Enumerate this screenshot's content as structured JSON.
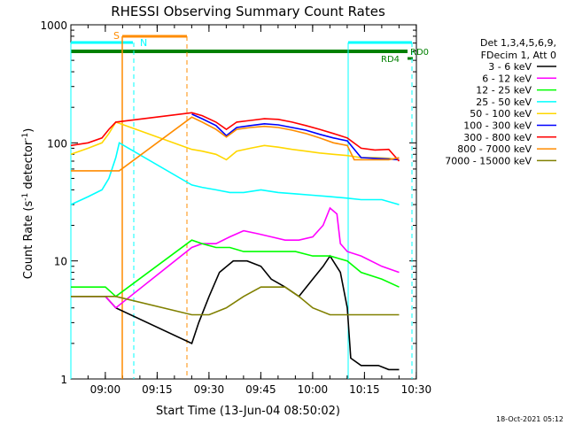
{
  "chart_data": {
    "type": "line",
    "title": "RHESSI Observing Summary Count Rates",
    "xlabel": "Start Time (13-Jun-04 08:50:02)",
    "ylabel_main": "Count Rate (s",
    "ylabel_sup1": "-1",
    "ylabel_mid": " detector",
    "ylabel_sup2": "-1",
    "ylabel_end": ")",
    "y_scale": "log",
    "ylim": [
      1,
      1000
    ],
    "xlim_minutes": [
      0,
      100
    ],
    "y_ticks": [
      {
        "value": 1,
        "label": "1"
      },
      {
        "value": 10,
        "label": "10"
      },
      {
        "value": 100,
        "label": "100"
      },
      {
        "value": 1000,
        "label": "1000"
      }
    ],
    "x_ticks": [
      {
        "minute": 9.97,
        "label": "09:00"
      },
      {
        "minute": 24.97,
        "label": "09:15"
      },
      {
        "minute": 39.97,
        "label": "09:30"
      },
      {
        "minute": 54.97,
        "label": "09:45"
      },
      {
        "minute": 69.97,
        "label": "10:00"
      },
      {
        "minute": 84.97,
        "label": "10:15"
      },
      {
        "minute": 99.97,
        "label": "10:30"
      }
    ],
    "legend_header": [
      "Det 1,3,4,5,6,9,",
      "FDecim 1, Att 0"
    ],
    "series": [
      {
        "name": "3 - 6 keV",
        "color": "#000000",
        "values": [
          [
            0,
            5
          ],
          [
            10,
            5
          ],
          [
            13,
            4
          ],
          [
            35,
            2
          ],
          [
            37,
            3
          ],
          [
            40,
            5
          ],
          [
            43,
            8
          ],
          [
            47,
            10
          ],
          [
            51,
            10
          ],
          [
            55,
            9
          ],
          [
            58,
            7
          ],
          [
            62,
            6
          ],
          [
            66,
            5
          ],
          [
            70,
            7
          ],
          [
            73,
            9
          ],
          [
            75,
            11
          ],
          [
            78,
            8
          ],
          [
            80,
            4
          ],
          [
            81,
            1.5
          ],
          [
            84,
            1.3
          ],
          [
            89,
            1.3
          ],
          [
            92,
            1.2
          ],
          [
            95,
            1.2
          ]
        ]
      },
      {
        "name": "6 - 12 keV",
        "color": "#ff00ff",
        "values": [
          [
            0,
            5
          ],
          [
            10,
            5
          ],
          [
            13,
            4
          ],
          [
            35,
            13
          ],
          [
            38,
            14
          ],
          [
            42,
            14
          ],
          [
            46,
            16
          ],
          [
            50,
            18
          ],
          [
            54,
            17
          ],
          [
            58,
            16
          ],
          [
            62,
            15
          ],
          [
            66,
            15
          ],
          [
            70,
            16
          ],
          [
            73,
            20
          ],
          [
            75,
            28
          ],
          [
            77,
            25
          ],
          [
            78,
            14
          ],
          [
            80,
            12
          ],
          [
            84,
            11
          ],
          [
            90,
            9
          ],
          [
            95,
            8
          ]
        ]
      },
      {
        "name": "12 - 25 keV",
        "color": "#00ff00",
        "values": [
          [
            0,
            6
          ],
          [
            10,
            6
          ],
          [
            13,
            5
          ],
          [
            35,
            15
          ],
          [
            38,
            14
          ],
          [
            42,
            13
          ],
          [
            46,
            13
          ],
          [
            50,
            12
          ],
          [
            55,
            12
          ],
          [
            60,
            12
          ],
          [
            65,
            12
          ],
          [
            70,
            11
          ],
          [
            75,
            11
          ],
          [
            80,
            10
          ],
          [
            84,
            8
          ],
          [
            90,
            7
          ],
          [
            95,
            6
          ]
        ]
      },
      {
        "name": "25 - 50 keV",
        "color": "#00ffff",
        "values": [
          [
            0,
            30
          ],
          [
            5,
            35
          ],
          [
            9,
            40
          ],
          [
            11,
            50
          ],
          [
            13,
            75
          ],
          [
            14,
            100
          ],
          [
            35,
            44
          ],
          [
            38,
            42
          ],
          [
            42,
            40
          ],
          [
            46,
            38
          ],
          [
            50,
            38
          ],
          [
            55,
            40
          ],
          [
            60,
            38
          ],
          [
            65,
            37
          ],
          [
            70,
            36
          ],
          [
            75,
            35
          ],
          [
            80,
            34
          ],
          [
            84,
            33
          ],
          [
            90,
            33
          ],
          [
            95,
            30
          ]
        ]
      },
      {
        "name": "50 - 100 keV",
        "color": "#ffd700",
        "values": [
          [
            0,
            80
          ],
          [
            5,
            90
          ],
          [
            9,
            100
          ],
          [
            11,
            120
          ],
          [
            13,
            150
          ],
          [
            35,
            88
          ],
          [
            38,
            85
          ],
          [
            42,
            80
          ],
          [
            45,
            72
          ],
          [
            48,
            85
          ],
          [
            52,
            90
          ],
          [
            56,
            95
          ],
          [
            60,
            92
          ],
          [
            64,
            88
          ],
          [
            68,
            85
          ],
          [
            72,
            82
          ],
          [
            76,
            80
          ],
          [
            80,
            78
          ],
          [
            84,
            75
          ],
          [
            88,
            75
          ],
          [
            92,
            74
          ],
          [
            95,
            72
          ]
        ]
      },
      {
        "name": "100 - 300 keV",
        "color": "#0000ff",
        "values": [
          [
            35,
            175
          ],
          [
            38,
            160
          ],
          [
            42,
            140
          ],
          [
            45,
            115
          ],
          [
            48,
            135
          ],
          [
            52,
            140
          ],
          [
            56,
            145
          ],
          [
            60,
            142
          ],
          [
            64,
            135
          ],
          [
            68,
            128
          ],
          [
            72,
            118
          ],
          [
            76,
            110
          ],
          [
            80,
            104
          ],
          [
            84,
            75
          ],
          [
            88,
            74
          ],
          [
            92,
            73
          ],
          [
            95,
            72
          ]
        ]
      },
      {
        "name": "300 - 800 keV",
        "color": "#ff0000",
        "values": [
          [
            0,
            95
          ],
          [
            5,
            100
          ],
          [
            9,
            110
          ],
          [
            11,
            130
          ],
          [
            13,
            150
          ],
          [
            35,
            180
          ],
          [
            38,
            170
          ],
          [
            42,
            150
          ],
          [
            45,
            130
          ],
          [
            48,
            150
          ],
          [
            52,
            155
          ],
          [
            56,
            160
          ],
          [
            60,
            158
          ],
          [
            64,
            150
          ],
          [
            68,
            140
          ],
          [
            72,
            130
          ],
          [
            76,
            120
          ],
          [
            80,
            110
          ],
          [
            84,
            90
          ],
          [
            88,
            87
          ],
          [
            92,
            88
          ],
          [
            95,
            70
          ]
        ]
      },
      {
        "name": "800 - 7000 keV",
        "color": "#ff8c00",
        "values": [
          [
            0,
            58
          ],
          [
            14,
            58
          ],
          [
            35,
            165
          ],
          [
            38,
            150
          ],
          [
            42,
            130
          ],
          [
            45,
            112
          ],
          [
            48,
            130
          ],
          [
            52,
            135
          ],
          [
            56,
            138
          ],
          [
            60,
            135
          ],
          [
            64,
            128
          ],
          [
            68,
            120
          ],
          [
            72,
            110
          ],
          [
            76,
            100
          ],
          [
            80,
            95
          ],
          [
            82,
            72
          ],
          [
            88,
            72
          ],
          [
            92,
            72
          ],
          [
            95,
            75
          ]
        ]
      },
      {
        "name": "7000 - 15000 keV",
        "color": "#808000",
        "values": [
          [
            0,
            5
          ],
          [
            10,
            5
          ],
          [
            13,
            5
          ],
          [
            35,
            3.5
          ],
          [
            40,
            3.5
          ],
          [
            45,
            4
          ],
          [
            50,
            5
          ],
          [
            55,
            6
          ],
          [
            58,
            6
          ],
          [
            62,
            6
          ],
          [
            66,
            5
          ],
          [
            70,
            4
          ],
          [
            75,
            3.5
          ],
          [
            80,
            3.5
          ],
          [
            85,
            3.5
          ],
          [
            90,
            3.5
          ],
          [
            95,
            3.5
          ]
        ]
      }
    ],
    "markers": [
      {
        "label": "S",
        "color": "#ff8c00"
      },
      {
        "label": "N",
        "color": "#00ffff"
      },
      {
        "label": "RD4",
        "color": "#008000"
      },
      {
        "label": "RD0",
        "color": "#008000"
      }
    ],
    "footer_date": "18-Oct-2021 05:12"
  }
}
